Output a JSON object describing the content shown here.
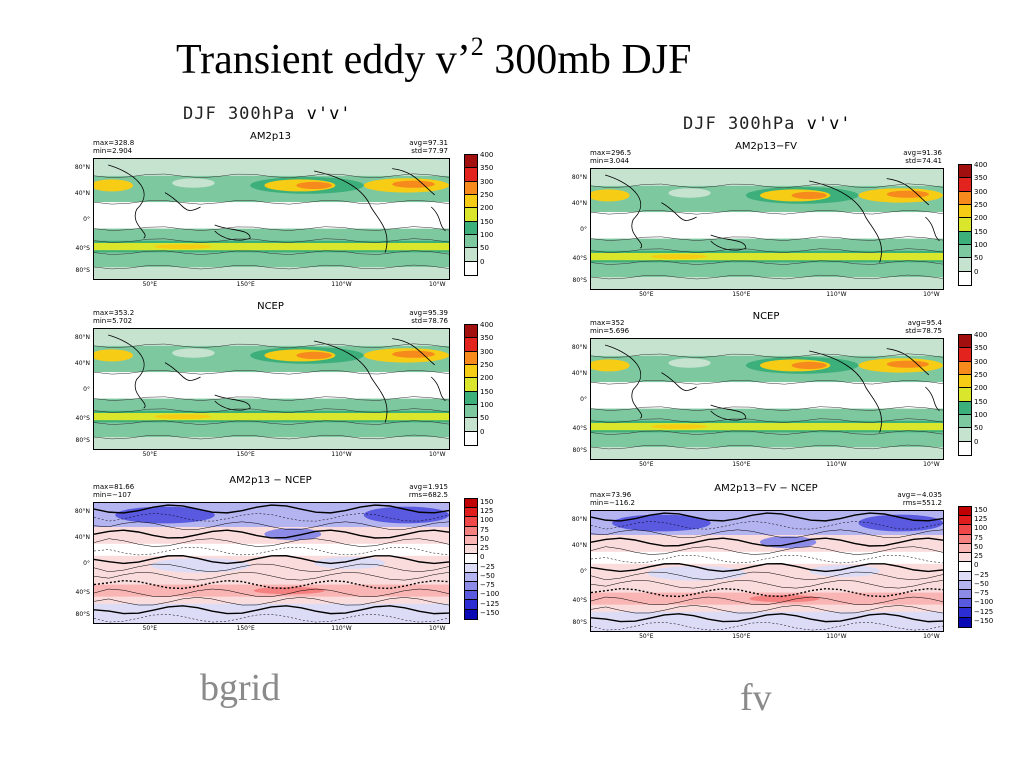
{
  "title": {
    "main": "Transient eddy v’",
    "sup": "2",
    "rest": " 300mb DJF"
  },
  "columns": [
    {
      "header_a": "DJF 300hPa ",
      "header_b": "v'v'",
      "footer": "bgrid"
    },
    {
      "header_a": "DJF 300hPa ",
      "header_b": "v'v'",
      "footer": "fv"
    }
  ],
  "panels": [
    {
      "title": "AM2p13",
      "s1": "max=328.8",
      "s2": "min=2.904",
      "s3": "avg=97.31",
      "s4": "std=77.97"
    },
    {
      "title": "NCEP",
      "s1": "max=353.2",
      "s2": "min=5.702",
      "s3": "avg=95.39",
      "s4": "std=78.76"
    },
    {
      "title": "AM2p13 − NCEP",
      "s1": "max=81.66",
      "s2": "min=−107",
      "s3": "avg=1.915",
      "s4": "rms=682.5"
    },
    {
      "title": "AM2p13−FV",
      "s1": "max=296.5",
      "s2": "min=3.044",
      "s3": "avg=91.36",
      "s4": "std=74.41"
    },
    {
      "title": "NCEP",
      "s1": "max=352",
      "s2": "min=5.696",
      "s3": "avg=95.4",
      "s4": "std=78.75"
    },
    {
      "title": "AM2p13−FV − NCEP",
      "s1": "max=73.96",
      "s2": "min=−116.2",
      "s3": "avg=−4.035",
      "s4": "rms=551.2"
    }
  ],
  "lat_labels": [
    "80°N",
    "40°N",
    "0°",
    "40°S",
    "80°S"
  ],
  "lon_labels": [
    "50°E",
    "150°E",
    "110°W",
    "10°W"
  ],
  "field_scale": {
    "labels": [
      "400",
      "350",
      "300",
      "250",
      "200",
      "150",
      "100",
      "50",
      "0"
    ],
    "colors": [
      "#a10f0f",
      "#e3231d",
      "#f68a1d",
      "#f7cc14",
      "#d9e62c",
      "#3caf7b",
      "#7ec8a0",
      "#c6e3d0",
      "#ffffff"
    ]
  },
  "diff_scale": {
    "labels": [
      "150",
      "125",
      "100",
      "75",
      "50",
      "25",
      "0",
      "−25",
      "−50",
      "−75",
      "−100",
      "−125",
      "−150"
    ],
    "colors": [
      "#c00000",
      "#e01c1c",
      "#f04848",
      "#f58080",
      "#f9b4b4",
      "#fbdcdc",
      "#ffffff",
      "#dcdcf6",
      "#b4b4f0",
      "#8c8ce8",
      "#5a5ae0",
      "#2d2dd4",
      "#0a0ab4"
    ]
  }
}
